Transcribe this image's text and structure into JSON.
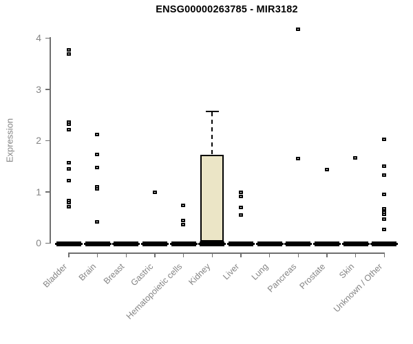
{
  "page": {
    "background": "#ffffff"
  },
  "chart_data": {
    "type": "boxplot",
    "title": "ENSG00000263785 - MIR3182",
    "xlabel": "",
    "ylabel": "Expression",
    "ylim": [
      0,
      4
    ],
    "yticks": [
      0,
      1,
      2,
      3,
      4
    ],
    "grid": false,
    "legend": false,
    "categories": [
      "Bladder",
      "Brain",
      "Breast",
      "Gastric",
      "Hematopoietic cells",
      "Kidney",
      "Liver",
      "Lung",
      "Pancreas",
      "Prostate",
      "Skin",
      "Unknown / Other"
    ],
    "series": [
      {
        "name": "Bladder",
        "box": {
          "q1": 0,
          "median": 0,
          "q3": 0,
          "whisker_low": 0,
          "whisker_high": 0
        },
        "points": [
          3.77,
          3.68,
          2.36,
          2.31,
          2.21,
          1.57,
          1.44,
          1.22,
          0.83,
          0.79,
          0.7
        ]
      },
      {
        "name": "Brain",
        "box": {
          "q1": 0,
          "median": 0,
          "q3": 0,
          "whisker_low": 0,
          "whisker_high": 0
        },
        "points": [
          2.12,
          1.72,
          1.47,
          1.09,
          1.05,
          0.41
        ]
      },
      {
        "name": "Breast",
        "box": {
          "q1": 0,
          "median": 0,
          "q3": 0,
          "whisker_low": 0,
          "whisker_high": 0
        },
        "points": []
      },
      {
        "name": "Gastric",
        "box": {
          "q1": 0,
          "median": 0,
          "q3": 0,
          "whisker_low": 0,
          "whisker_high": 0
        },
        "points": [
          0.99
        ]
      },
      {
        "name": "Hematopoietic cells",
        "box": {
          "q1": 0,
          "median": 0,
          "q3": 0,
          "whisker_low": 0,
          "whisker_high": 0
        },
        "points": [
          0.73,
          0.44,
          0.35
        ]
      },
      {
        "name": "Kidney",
        "box": {
          "q1": 0,
          "median": 0,
          "q3": 1.7,
          "whisker_low": 0,
          "whisker_high": 2.58
        },
        "points": []
      },
      {
        "name": "Liver",
        "box": {
          "q1": 0,
          "median": 0,
          "q3": 0,
          "whisker_low": 0,
          "whisker_high": 0
        },
        "points": [
          0.98,
          0.91,
          0.69,
          0.55
        ]
      },
      {
        "name": "Lung",
        "box": {
          "q1": 0,
          "median": 0,
          "q3": 0,
          "whisker_low": 0,
          "whisker_high": 0
        },
        "points": []
      },
      {
        "name": "Pancreas",
        "box": {
          "q1": 0,
          "median": 0,
          "q3": 0,
          "whisker_low": 0,
          "whisker_high": 0
        },
        "points": [
          4.17,
          1.64
        ]
      },
      {
        "name": "Prostate",
        "box": {
          "q1": 0,
          "median": 0,
          "q3": 0,
          "whisker_low": 0,
          "whisker_high": 0
        },
        "points": [
          1.43
        ]
      },
      {
        "name": "Skin",
        "box": {
          "q1": 0,
          "median": 0,
          "q3": 0,
          "whisker_low": 0,
          "whisker_high": 0
        },
        "points": [
          1.66
        ]
      },
      {
        "name": "Unknown / Other",
        "box": {
          "q1": 0,
          "median": 0,
          "q3": 0,
          "whisker_low": 0,
          "whisker_high": 0
        },
        "points": [
          2.02,
          1.5,
          1.32,
          0.94,
          0.67,
          0.6,
          0.56,
          0.46,
          0.26
        ]
      }
    ],
    "colors": {
      "box_fill": "#ebe5c6",
      "box_border": "#000000",
      "point": "#000000",
      "zero_bar": "#000000",
      "axis": "#6e6e6e",
      "tick_label": "#848484",
      "title": "#000000",
      "background": "#ffffff"
    }
  }
}
